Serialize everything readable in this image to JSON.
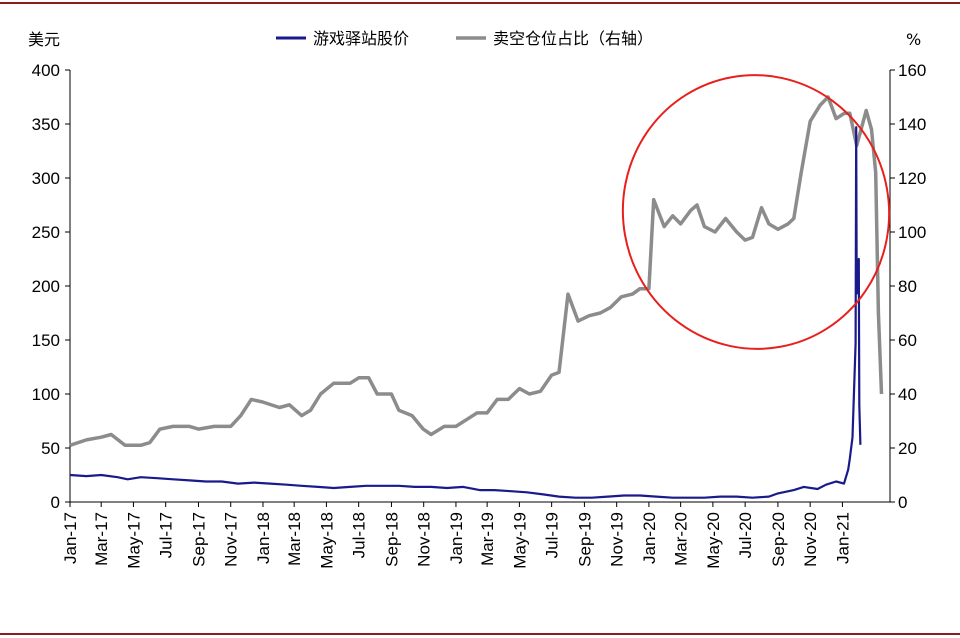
{
  "colors": {
    "price_line": "#1a1a8c",
    "short_line": "#8c8c8c",
    "highlight_ellipse": "#e8201c",
    "frame": "#8a1c1c"
  },
  "chart_data": {
    "type": "line",
    "left_axis_unit": "美元",
    "right_axis_unit": "%",
    "ylim_left": [
      0,
      400
    ],
    "ylim_right": [
      0,
      160
    ],
    "yticks_left": [
      "0",
      "50",
      "100",
      "150",
      "200",
      "250",
      "300",
      "350",
      "400"
    ],
    "yticks_right": [
      "0",
      "20",
      "40",
      "60",
      "80",
      "100",
      "120",
      "140",
      "160"
    ],
    "x_range": [
      "2017-01-01",
      "2021-04-01"
    ],
    "xticks": [
      "Jan-17",
      "Mar-17",
      "May-17",
      "Jul-17",
      "Sep-17",
      "Nov-17",
      "Jan-18",
      "Mar-18",
      "May-18",
      "Jul-18",
      "Sep-18",
      "Nov-18",
      "Jan-19",
      "Mar-19",
      "May-19",
      "Jul-19",
      "Sep-19",
      "Nov-19",
      "Jan-20",
      "Mar-20",
      "May-20",
      "Jul-20",
      "Sep-20",
      "Nov-20",
      "Jan-21"
    ],
    "grid": false,
    "legend_position": "top",
    "series": [
      {
        "name": "游戏驿站股价",
        "axis": "left",
        "points": [
          [
            "2017-01-01",
            25
          ],
          [
            "2017-02-01",
            24
          ],
          [
            "2017-03-01",
            25
          ],
          [
            "2017-04-01",
            23
          ],
          [
            "2017-04-20",
            21
          ],
          [
            "2017-05-15",
            23
          ],
          [
            "2017-06-15",
            22
          ],
          [
            "2017-07-15",
            21
          ],
          [
            "2017-08-15",
            20
          ],
          [
            "2017-09-15",
            19
          ],
          [
            "2017-10-15",
            19
          ],
          [
            "2017-11-15",
            17
          ],
          [
            "2017-12-15",
            18
          ],
          [
            "2018-01-15",
            17
          ],
          [
            "2018-02-15",
            16
          ],
          [
            "2018-03-15",
            15
          ],
          [
            "2018-04-15",
            14
          ],
          [
            "2018-05-15",
            13
          ],
          [
            "2018-06-15",
            14
          ],
          [
            "2018-07-15",
            15
          ],
          [
            "2018-08-15",
            15
          ],
          [
            "2018-09-15",
            15
          ],
          [
            "2018-10-15",
            14
          ],
          [
            "2018-11-15",
            14
          ],
          [
            "2018-12-15",
            13
          ],
          [
            "2019-01-15",
            14
          ],
          [
            "2019-02-15",
            11
          ],
          [
            "2019-03-15",
            11
          ],
          [
            "2019-04-15",
            10
          ],
          [
            "2019-05-15",
            9
          ],
          [
            "2019-06-15",
            7
          ],
          [
            "2019-07-15",
            5
          ],
          [
            "2019-08-15",
            4
          ],
          [
            "2019-09-15",
            4
          ],
          [
            "2019-10-15",
            5
          ],
          [
            "2019-11-15",
            6
          ],
          [
            "2019-12-15",
            6
          ],
          [
            "2020-01-15",
            5
          ],
          [
            "2020-02-15",
            4
          ],
          [
            "2020-03-15",
            4
          ],
          [
            "2020-04-15",
            4
          ],
          [
            "2020-05-15",
            5
          ],
          [
            "2020-06-15",
            5
          ],
          [
            "2020-07-15",
            4
          ],
          [
            "2020-08-15",
            5
          ],
          [
            "2020-09-01",
            8
          ],
          [
            "2020-10-01",
            11
          ],
          [
            "2020-10-20",
            14
          ],
          [
            "2020-11-15",
            12
          ],
          [
            "2020-12-01",
            16
          ],
          [
            "2020-12-20",
            19
          ],
          [
            "2021-01-04",
            17
          ],
          [
            "2021-01-12",
            30
          ],
          [
            "2021-01-15",
            40
          ],
          [
            "2021-01-20",
            60
          ],
          [
            "2021-01-26",
            147
          ],
          [
            "2021-01-27",
            347
          ],
          [
            "2021-01-28",
            193
          ],
          [
            "2021-02-01",
            225
          ],
          [
            "2021-02-02",
            90
          ],
          [
            "2021-02-04",
            53
          ]
        ]
      },
      {
        "name": "卖空仓位占比（右轴）",
        "axis": "right",
        "points": [
          [
            "2017-01-01",
            21
          ],
          [
            "2017-02-01",
            23
          ],
          [
            "2017-03-01",
            24
          ],
          [
            "2017-03-20",
            25
          ],
          [
            "2017-04-15",
            21
          ],
          [
            "2017-05-15",
            21
          ],
          [
            "2017-06-01",
            22
          ],
          [
            "2017-06-20",
            27
          ],
          [
            "2017-07-15",
            28
          ],
          [
            "2017-08-15",
            28
          ],
          [
            "2017-09-01",
            27
          ],
          [
            "2017-10-01",
            28
          ],
          [
            "2017-11-01",
            28
          ],
          [
            "2017-11-20",
            32
          ],
          [
            "2017-12-10",
            38
          ],
          [
            "2018-01-01",
            37
          ],
          [
            "2018-02-01",
            35
          ],
          [
            "2018-02-20",
            36
          ],
          [
            "2018-03-15",
            32
          ],
          [
            "2018-04-01",
            34
          ],
          [
            "2018-04-20",
            40
          ],
          [
            "2018-05-15",
            44
          ],
          [
            "2018-06-15",
            44
          ],
          [
            "2018-07-01",
            46
          ],
          [
            "2018-07-20",
            46
          ],
          [
            "2018-08-05",
            40
          ],
          [
            "2018-09-01",
            40
          ],
          [
            "2018-09-15",
            34
          ],
          [
            "2018-10-10",
            32
          ],
          [
            "2018-10-31",
            27
          ],
          [
            "2018-11-15",
            25
          ],
          [
            "2018-12-10",
            28
          ],
          [
            "2019-01-01",
            28
          ],
          [
            "2019-01-25",
            31
          ],
          [
            "2019-02-10",
            33
          ],
          [
            "2019-03-01",
            33
          ],
          [
            "2019-03-20",
            38
          ],
          [
            "2019-04-10",
            38
          ],
          [
            "2019-05-01",
            42
          ],
          [
            "2019-05-20",
            40
          ],
          [
            "2019-06-10",
            41
          ],
          [
            "2019-07-01",
            47
          ],
          [
            "2019-07-15",
            48
          ],
          [
            "2019-08-01",
            77
          ],
          [
            "2019-08-20",
            67
          ],
          [
            "2019-09-10",
            69
          ],
          [
            "2019-10-01",
            70
          ],
          [
            "2019-10-20",
            72
          ],
          [
            "2019-11-10",
            76
          ],
          [
            "2019-12-01",
            77
          ],
          [
            "2019-12-15",
            79
          ],
          [
            "2020-01-01",
            79
          ],
          [
            "2020-01-10",
            112
          ],
          [
            "2020-01-30",
            102
          ],
          [
            "2020-02-15",
            106
          ],
          [
            "2020-03-01",
            103
          ],
          [
            "2020-03-20",
            108
          ],
          [
            "2020-04-01",
            110
          ],
          [
            "2020-04-15",
            102
          ],
          [
            "2020-05-05",
            100
          ],
          [
            "2020-05-25",
            105
          ],
          [
            "2020-06-15",
            100
          ],
          [
            "2020-07-01",
            97
          ],
          [
            "2020-07-15",
            98
          ],
          [
            "2020-08-01",
            109
          ],
          [
            "2020-08-15",
            103
          ],
          [
            "2020-09-01",
            101
          ],
          [
            "2020-09-20",
            103
          ],
          [
            "2020-10-01",
            105
          ],
          [
            "2020-10-15",
            122
          ],
          [
            "2020-11-01",
            141
          ],
          [
            "2020-11-20",
            147
          ],
          [
            "2020-12-05",
            150
          ],
          [
            "2020-12-20",
            142
          ],
          [
            "2021-01-05",
            144
          ],
          [
            "2021-01-15",
            144
          ],
          [
            "2021-01-28",
            132
          ],
          [
            "2021-02-15",
            145
          ],
          [
            "2021-02-25",
            138
          ],
          [
            "2021-03-05",
            122
          ],
          [
            "2021-03-10",
            70
          ],
          [
            "2021-03-16",
            40
          ]
        ]
      }
    ]
  }
}
